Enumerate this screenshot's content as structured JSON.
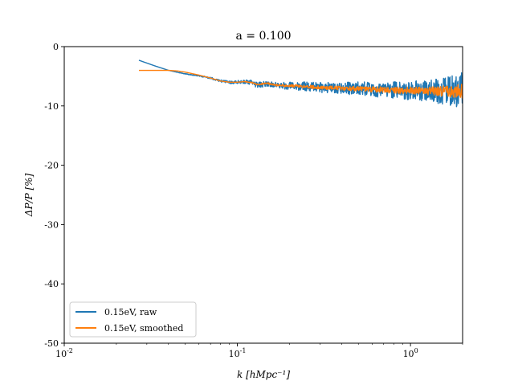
{
  "chart_data": {
    "type": "line",
    "title": "a = 0.100",
    "xlabel": "k [hMpc⁻¹]",
    "ylabel": "ΔP/P [%]",
    "xscale": "log",
    "xlim": [
      0.01,
      2.0
    ],
    "ylim": [
      -50,
      0
    ],
    "x_ticks": [
      {
        "value": 0.01,
        "label_base": "10",
        "label_exp": "-2"
      },
      {
        "value": 0.1,
        "label_base": "10",
        "label_exp": "-1"
      },
      {
        "value": 1,
        "label_base": "10",
        "label_exp": "0"
      }
    ],
    "y_ticks": [
      {
        "value": 0,
        "label": "0"
      },
      {
        "value": -10,
        "label": "-10"
      },
      {
        "value": -20,
        "label": "-20"
      },
      {
        "value": -30,
        "label": "-30"
      },
      {
        "value": -40,
        "label": "-40"
      },
      {
        "value": -50,
        "label": "-50"
      }
    ],
    "grid": false,
    "legend_position": "lower-left",
    "series": [
      {
        "name": "0.15eV, raw",
        "color": "#1f77b4",
        "x": [
          0.027,
          0.033,
          0.04,
          0.05,
          0.06,
          0.07,
          0.08,
          0.09,
          0.1,
          0.11,
          0.12,
          0.13,
          0.15,
          0.17,
          0.2,
          0.25,
          0.3,
          0.4,
          0.5,
          0.7,
          1.0,
          1.3,
          1.6,
          2.0
        ],
        "y": [
          -2.3,
          -3.2,
          -4.0,
          -4.6,
          -4.9,
          -5.3,
          -5.8,
          -6.0,
          -6.0,
          -5.9,
          -6.0,
          -6.5,
          -6.2,
          -6.5,
          -6.6,
          -6.7,
          -6.9,
          -7.0,
          -7.1,
          -7.3,
          -7.4,
          -7.5,
          -7.5,
          -7.5
        ],
        "spread": [
          0,
          0,
          0,
          0.05,
          0.1,
          0.15,
          0.2,
          0.25,
          0.3,
          0.35,
          0.4,
          0.45,
          0.5,
          0.55,
          0.65,
          0.75,
          0.85,
          1.0,
          1.15,
          1.35,
          1.6,
          1.9,
          2.3,
          3.2
        ]
      },
      {
        "name": "0.15eV, smoothed",
        "color": "#ff7f0e",
        "x": [
          0.027,
          0.03,
          0.035,
          0.04,
          0.045,
          0.05,
          0.06,
          0.07,
          0.08,
          0.09,
          0.1,
          0.11,
          0.12,
          0.13,
          0.15,
          0.17,
          0.2,
          0.25,
          0.3,
          0.4,
          0.5,
          0.7,
          1.0,
          1.3,
          1.6,
          2.0
        ],
        "y": [
          -4.0,
          -4.0,
          -4.0,
          -4.0,
          -4.1,
          -4.3,
          -4.8,
          -5.3,
          -5.8,
          -6.0,
          -6.0,
          -5.9,
          -6.0,
          -6.4,
          -6.2,
          -6.5,
          -6.6,
          -6.7,
          -6.9,
          -7.0,
          -7.1,
          -7.3,
          -7.4,
          -7.5,
          -7.5,
          -7.5
        ],
        "spread": [
          0,
          0,
          0,
          0,
          0,
          0,
          0,
          0,
          0,
          0,
          0,
          0.05,
          0.1,
          0.12,
          0.15,
          0.18,
          0.2,
          0.25,
          0.3,
          0.35,
          0.4,
          0.5,
          0.6,
          0.7,
          0.9,
          1.2
        ]
      }
    ]
  }
}
